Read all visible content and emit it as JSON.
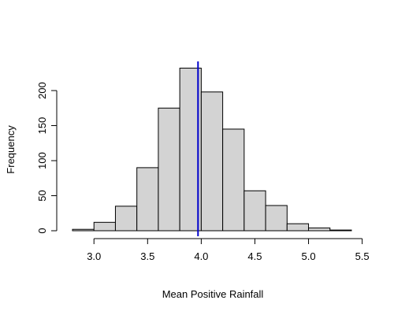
{
  "chart_data": {
    "type": "bar",
    "histogram": true,
    "title": "",
    "xlabel": "Mean Positive Rainfall",
    "ylabel": "Frequency",
    "bin_width": 0.2,
    "bins": [
      {
        "x0": 2.8,
        "x1": 3.0,
        "count": 2
      },
      {
        "x0": 3.0,
        "x1": 3.2,
        "count": 12
      },
      {
        "x0": 3.2,
        "x1": 3.4,
        "count": 35
      },
      {
        "x0": 3.4,
        "x1": 3.6,
        "count": 90
      },
      {
        "x0": 3.6,
        "x1": 3.8,
        "count": 175
      },
      {
        "x0": 3.8,
        "x1": 4.0,
        "count": 232
      },
      {
        "x0": 4.0,
        "x1": 4.2,
        "count": 198
      },
      {
        "x0": 4.2,
        "x1": 4.4,
        "count": 145
      },
      {
        "x0": 4.4,
        "x1": 4.6,
        "count": 57
      },
      {
        "x0": 4.6,
        "x1": 4.8,
        "count": 36
      },
      {
        "x0": 4.8,
        "x1": 5.0,
        "count": 10
      },
      {
        "x0": 5.0,
        "x1": 5.2,
        "count": 4
      },
      {
        "x0": 5.2,
        "x1": 5.4,
        "count": 1
      }
    ],
    "xlim": [
      2.8,
      5.5
    ],
    "ylim": [
      0,
      240
    ],
    "x_ticks": [
      3.0,
      3.5,
      4.0,
      4.5,
      5.0,
      5.5
    ],
    "x_tick_labels": [
      "3.0",
      "3.5",
      "4.0",
      "4.5",
      "5.0",
      "5.5"
    ],
    "y_ticks": [
      0,
      50,
      100,
      150,
      200
    ],
    "y_tick_labels": [
      "0",
      "50",
      "100",
      "150",
      "200"
    ],
    "reference_line": {
      "x": 3.97,
      "color": "#0000cc"
    },
    "bar_fill": "#d3d3d3",
    "bar_stroke": "#000000",
    "grid": false,
    "legend": "none"
  }
}
